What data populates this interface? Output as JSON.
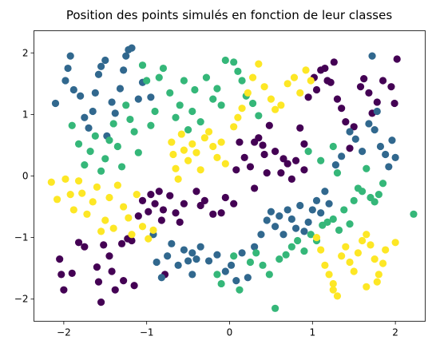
{
  "chart_data": {
    "type": "scatter",
    "title": "Position des points simulés en fonction de leur classes",
    "xlabel": "",
    "ylabel": "",
    "xlim": [
      -2.36,
      2.36
    ],
    "ylim": [
      -2.36,
      2.36
    ],
    "x_ticks": [
      -2,
      -1,
      0,
      1,
      2
    ],
    "x_tick_labels": [
      "−2",
      "−1",
      "0",
      "1",
      "2"
    ],
    "y_ticks": [
      -2,
      -1,
      0,
      1,
      2
    ],
    "y_tick_labels": [
      "−2",
      "−1",
      "0",
      "1",
      "2"
    ],
    "grid": false,
    "legend": false,
    "marker": "circle",
    "class_colors": {
      "0": "#440154",
      "1": "#31688e",
      "2": "#35b779",
      "3": "#fde725"
    },
    "series": [
      {
        "class": 0,
        "color": "#440154",
        "points": [
          [
            -2.05,
            -1.35
          ],
          [
            -2.03,
            -1.6
          ],
          [
            -2.0,
            -1.85
          ],
          [
            -1.9,
            -1.58
          ],
          [
            -1.82,
            -1.08
          ],
          [
            -1.75,
            -1.15
          ],
          [
            -1.6,
            -1.48
          ],
          [
            -1.58,
            -1.72
          ],
          [
            -1.55,
            -2.05
          ],
          [
            -1.52,
            -1.12
          ],
          [
            -1.45,
            -1.3
          ],
          [
            -1.42,
            -1.55
          ],
          [
            -1.38,
            -1.85
          ],
          [
            -1.3,
            -1.1
          ],
          [
            -1.28,
            -1.7
          ],
          [
            -1.18,
            -1.05
          ],
          [
            -1.15,
            -1.78
          ],
          [
            -1.1,
            -0.65
          ],
          [
            -1.05,
            -0.4
          ],
          [
            -0.98,
            -0.58
          ],
          [
            -0.95,
            -0.3
          ],
          [
            -0.9,
            -0.45
          ],
          [
            -0.85,
            -0.25
          ],
          [
            -0.8,
            -0.55
          ],
          [
            -0.78,
            -1.6
          ],
          [
            -0.72,
            -0.32
          ],
          [
            -0.65,
            -0.6
          ],
          [
            -0.6,
            -0.75
          ],
          [
            -0.55,
            -0.45
          ],
          [
            -0.4,
            -0.25
          ],
          [
            -0.35,
            -0.48
          ],
          [
            -0.2,
            -0.62
          ],
          [
            -0.1,
            -0.6
          ],
          [
            -0.05,
            -0.35
          ],
          [
            0.05,
            -0.45
          ],
          [
            0.08,
            0.1
          ],
          [
            0.12,
            0.55
          ],
          [
            0.18,
            0.3
          ],
          [
            0.25,
            0.15
          ],
          [
            0.3,
            0.55
          ],
          [
            0.35,
            0.62
          ],
          [
            0.4,
            0.5
          ],
          [
            0.42,
            0.35
          ],
          [
            0.48,
            0.82
          ],
          [
            0.55,
            0.4
          ],
          [
            0.62,
            0.05
          ],
          [
            0.65,
            0.28
          ],
          [
            0.7,
            0.2
          ],
          [
            0.75,
            -0.05
          ],
          [
            0.8,
            0.25
          ],
          [
            0.85,
            0.78
          ],
          [
            0.9,
            0.52
          ],
          [
            0.95,
            1.28
          ],
          [
            1.02,
            1.6
          ],
          [
            1.05,
            1.4
          ],
          [
            1.1,
            1.72
          ],
          [
            1.15,
            1.75
          ],
          [
            1.18,
            1.55
          ],
          [
            1.22,
            1.52
          ],
          [
            1.26,
            1.85
          ],
          [
            1.3,
            1.25
          ],
          [
            1.35,
            1.1
          ],
          [
            1.4,
            0.88
          ],
          [
            1.45,
            0.45
          ],
          [
            1.5,
            0.8
          ],
          [
            1.58,
            1.45
          ],
          [
            1.62,
            1.58
          ],
          [
            1.68,
            1.35
          ],
          [
            1.72,
            1.02
          ],
          [
            1.78,
            1.2
          ],
          [
            1.85,
            1.55
          ],
          [
            1.95,
            1.45
          ],
          [
            2.02,
            1.9
          ],
          [
            1.99,
            1.18
          ],
          [
            0.9,
            0.1
          ],
          [
            0.45,
            0.05
          ],
          [
            0.3,
            -0.2
          ],
          [
            -0.3,
            -0.4
          ],
          [
            -0.82,
            -0.72
          ],
          [
            -1.23,
            -1.02
          ]
        ]
      },
      {
        "class": 1,
        "color": "#31688e",
        "points": [
          [
            -2.1,
            1.18
          ],
          [
            -1.98,
            1.55
          ],
          [
            -1.95,
            1.75
          ],
          [
            -1.92,
            1.95
          ],
          [
            -1.88,
            1.4
          ],
          [
            -1.8,
            1.3
          ],
          [
            -1.75,
            0.95
          ],
          [
            -1.7,
            0.78
          ],
          [
            -1.65,
            1.05
          ],
          [
            -1.62,
            1.35
          ],
          [
            -1.58,
            1.65
          ],
          [
            -1.55,
            1.78
          ],
          [
            -1.5,
            1.88
          ],
          [
            -1.48,
            0.65
          ],
          [
            -1.42,
            1.2
          ],
          [
            -1.38,
            1.02
          ],
          [
            -1.32,
            1.42
          ],
          [
            -1.28,
            1.72
          ],
          [
            -1.25,
            1.95
          ],
          [
            -1.22,
            2.05
          ],
          [
            -1.18,
            2.08
          ],
          [
            -1.1,
            1.25
          ],
          [
            -1.05,
            1.52
          ],
          [
            -0.95,
            1.28
          ],
          [
            -0.92,
            -0.95
          ],
          [
            -0.88,
            -1.4
          ],
          [
            -0.82,
            -1.65
          ],
          [
            -0.75,
            -1.3
          ],
          [
            -0.7,
            -1.1
          ],
          [
            -0.62,
            -1.45
          ],
          [
            -0.55,
            -1.2
          ],
          [
            -0.5,
            -1.38
          ],
          [
            -0.45,
            -1.6
          ],
          [
            -0.4,
            -1.35
          ],
          [
            -0.35,
            -1.15
          ],
          [
            -0.25,
            -1.38
          ],
          [
            -0.15,
            -1.28
          ],
          [
            -0.05,
            -1.55
          ],
          [
            0.02,
            -1.45
          ],
          [
            0.08,
            -1.7
          ],
          [
            0.15,
            -1.25
          ],
          [
            0.22,
            -1.65
          ],
          [
            0.3,
            -1.15
          ],
          [
            0.38,
            -0.95
          ],
          [
            0.45,
            -0.72
          ],
          [
            0.5,
            -0.58
          ],
          [
            0.55,
            -0.82
          ],
          [
            0.6,
            -0.65
          ],
          [
            0.65,
            -0.95
          ],
          [
            0.7,
            -0.55
          ],
          [
            0.75,
            -0.7
          ],
          [
            0.8,
            -0.85
          ],
          [
            0.85,
            -0.48
          ],
          [
            0.9,
            -0.9
          ],
          [
            0.95,
            -0.75
          ],
          [
            1.0,
            -0.55
          ],
          [
            1.05,
            -0.4
          ],
          [
            1.1,
            -0.6
          ],
          [
            1.15,
            -0.25
          ],
          [
            1.2,
            -0.45
          ],
          [
            1.28,
            0.18
          ],
          [
            1.35,
            0.32
          ],
          [
            1.45,
            0.72
          ],
          [
            1.52,
            0.6
          ],
          [
            1.6,
            0.4
          ],
          [
            1.68,
            0.85
          ],
          [
            1.75,
            0.75
          ],
          [
            1.82,
            0.48
          ],
          [
            1.88,
            0.35
          ],
          [
            1.92,
            0.15
          ],
          [
            1.96,
            0.58
          ],
          [
            2.0,
            0.3
          ],
          [
            1.78,
            1.05
          ],
          [
            1.72,
            1.95
          ],
          [
            -0.45,
            -1.25
          ]
        ]
      },
      {
        "class": 2,
        "color": "#35b779",
        "points": [
          [
            -1.9,
            0.82
          ],
          [
            -1.82,
            0.52
          ],
          [
            -1.75,
            0.18
          ],
          [
            -1.68,
            0.4
          ],
          [
            -1.62,
            0.65
          ],
          [
            -1.55,
            0.08
          ],
          [
            -1.5,
            0.28
          ],
          [
            -1.45,
            0.58
          ],
          [
            -1.4,
            0.85
          ],
          [
            -1.35,
            0.48
          ],
          [
            -1.3,
            0.15
          ],
          [
            -1.25,
            1.15
          ],
          [
            -1.2,
            0.92
          ],
          [
            -1.15,
            0.72
          ],
          [
            -1.1,
            0.38
          ],
          [
            -1.05,
            1.8
          ],
          [
            -1.0,
            1.55
          ],
          [
            -0.95,
            0.82
          ],
          [
            -0.9,
            1.05
          ],
          [
            -0.85,
            1.6
          ],
          [
            -0.8,
            1.75
          ],
          [
            -0.72,
            1.35
          ],
          [
            -0.65,
            0.95
          ],
          [
            -0.6,
            1.15
          ],
          [
            -0.55,
            1.55
          ],
          [
            -0.5,
            0.75
          ],
          [
            -0.45,
            1.05
          ],
          [
            -0.42,
            1.4
          ],
          [
            -0.35,
            0.88
          ],
          [
            -0.28,
            1.6
          ],
          [
            -0.2,
            1.25
          ],
          [
            -0.15,
            1.42
          ],
          [
            -0.1,
            1.15
          ],
          [
            -0.05,
            1.88
          ],
          [
            0.05,
            1.85
          ],
          [
            0.1,
            1.7
          ],
          [
            0.15,
            1.55
          ],
          [
            0.2,
            1.3
          ],
          [
            0.28,
            1.18
          ],
          [
            0.35,
            0.98
          ],
          [
            -0.15,
            -1.6
          ],
          [
            -0.1,
            -1.75
          ],
          [
            0.05,
            -1.3
          ],
          [
            0.12,
            -1.85
          ],
          [
            0.25,
            -1.4
          ],
          [
            0.32,
            -1.25
          ],
          [
            0.4,
            -1.45
          ],
          [
            0.48,
            -1.6
          ],
          [
            0.55,
            -2.15
          ],
          [
            0.6,
            -1.35
          ],
          [
            0.68,
            -1.28
          ],
          [
            0.75,
            -1.15
          ],
          [
            0.82,
            -1.05
          ],
          [
            0.9,
            -1.22
          ],
          [
            0.98,
            -0.95
          ],
          [
            1.05,
            -1.05
          ],
          [
            1.12,
            -0.8
          ],
          [
            1.18,
            -0.75
          ],
          [
            1.25,
            -0.7
          ],
          [
            1.32,
            -0.88
          ],
          [
            1.38,
            -0.55
          ],
          [
            1.45,
            -0.78
          ],
          [
            1.5,
            -0.4
          ],
          [
            1.55,
            -0.2
          ],
          [
            1.6,
            -0.25
          ],
          [
            1.65,
            0.12
          ],
          [
            1.7,
            -0.35
          ],
          [
            1.75,
            -0.42
          ],
          [
            1.8,
            -0.3
          ],
          [
            1.85,
            -0.12
          ],
          [
            2.22,
            -0.62
          ],
          [
            1.25,
            0.48
          ],
          [
            1.3,
            0.05
          ],
          [
            0.95,
            0.4
          ],
          [
            1.1,
            0.25
          ]
        ]
      },
      {
        "class": 3,
        "color": "#fde725",
        "points": [
          [
            -2.15,
            -0.1
          ],
          [
            -2.08,
            -0.38
          ],
          [
            -1.98,
            -0.05
          ],
          [
            -1.92,
            -0.3
          ],
          [
            -1.88,
            -0.55
          ],
          [
            -1.82,
            -0.08
          ],
          [
            -1.78,
            -0.28
          ],
          [
            -1.72,
            -0.62
          ],
          [
            -1.65,
            -0.42
          ],
          [
            -1.6,
            -0.18
          ],
          [
            -1.55,
            -0.9
          ],
          [
            -1.5,
            -0.72
          ],
          [
            -1.45,
            -0.35
          ],
          [
            -1.4,
            -0.85
          ],
          [
            -1.35,
            -0.15
          ],
          [
            -1.28,
            -0.5
          ],
          [
            -1.22,
            -0.68
          ],
          [
            -1.18,
            -0.95
          ],
          [
            -1.12,
            -0.3
          ],
          [
            -1.05,
            -0.82
          ],
          [
            -0.98,
            -1.02
          ],
          [
            -0.92,
            -0.88
          ],
          [
            -0.7,
            0.55
          ],
          [
            -0.68,
            0.35
          ],
          [
            -0.65,
            0.12
          ],
          [
            -0.62,
            -0.05
          ],
          [
            -0.58,
            0.68
          ],
          [
            -0.55,
            0.42
          ],
          [
            -0.5,
            0.25
          ],
          [
            -0.45,
            0.52
          ],
          [
            -0.4,
            0.38
          ],
          [
            -0.35,
            0.1
          ],
          [
            -0.3,
            0.62
          ],
          [
            -0.25,
            0.72
          ],
          [
            -0.2,
            0.48
          ],
          [
            -0.15,
            0.3
          ],
          [
            -0.1,
            0.55
          ],
          [
            -0.05,
            0.2
          ],
          [
            0.05,
            0.8
          ],
          [
            0.1,
            0.95
          ],
          [
            0.15,
            1.1
          ],
          [
            0.22,
            1.35
          ],
          [
            0.28,
            1.6
          ],
          [
            0.35,
            1.82
          ],
          [
            0.42,
            1.45
          ],
          [
            0.5,
            1.25
          ],
          [
            0.55,
            1.08
          ],
          [
            0.62,
            1.15
          ],
          [
            0.7,
            1.5
          ],
          [
            0.78,
            1.6
          ],
          [
            0.85,
            1.35
          ],
          [
            0.92,
            1.72
          ],
          [
            0.98,
            1.55
          ],
          [
            1.05,
            -1.0
          ],
          [
            1.1,
            -1.2
          ],
          [
            1.15,
            -1.45
          ],
          [
            1.2,
            -1.6
          ],
          [
            1.25,
            -1.75
          ],
          [
            1.3,
            -1.95
          ],
          [
            1.35,
            -1.3
          ],
          [
            1.4,
            -1.15
          ],
          [
            1.45,
            -1.4
          ],
          [
            1.5,
            -1.55
          ],
          [
            1.55,
            -1.25
          ],
          [
            1.6,
            -1.05
          ],
          [
            1.65,
            -0.95
          ],
          [
            1.7,
            -1.12
          ],
          [
            1.75,
            -1.35
          ],
          [
            1.8,
            -1.6
          ],
          [
            1.85,
            -1.42
          ],
          [
            1.88,
            -1.2
          ],
          [
            2.0,
            -1.08
          ],
          [
            1.65,
            -1.8
          ],
          [
            1.78,
            -1.72
          ],
          [
            1.25,
            -1.85
          ]
        ]
      }
    ]
  }
}
